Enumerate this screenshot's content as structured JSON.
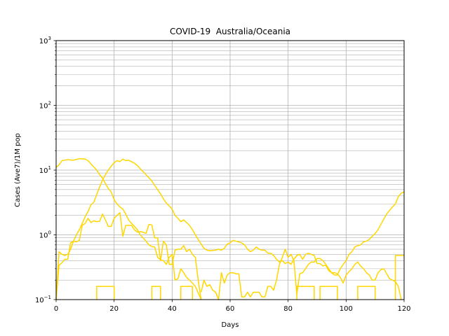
{
  "chart_data": {
    "type": "line",
    "title": "COVID-19  Australia/Oceania",
    "xlabel": "Days",
    "ylabel": "Cases (Ave7)/1M pop",
    "xlim": [
      0,
      120
    ],
    "ylim": [
      0.1,
      1000
    ],
    "yscale": "log",
    "grid": true,
    "line_color": "#FFD700",
    "x_ticks": [
      "0",
      "20",
      "40",
      "60",
      "80",
      "100",
      "120"
    ],
    "y_tick_values": [
      0.1,
      1,
      10,
      100,
      1000
    ],
    "y_ticks": [
      {
        "base": "10",
        "exp": "−1"
      },
      {
        "base": "10",
        "exp": "0"
      },
      {
        "base": "10",
        "exp": "1"
      },
      {
        "base": "10",
        "exp": "2"
      },
      {
        "base": "10",
        "exp": "3"
      }
    ],
    "series": [
      {
        "points": [
          [
            0,
            11.0
          ],
          [
            1,
            12.0
          ],
          [
            2,
            14.0
          ],
          [
            4,
            14.5
          ],
          [
            6,
            14.2
          ],
          [
            8,
            15.0
          ],
          [
            10,
            14.8
          ],
          [
            11,
            14.0
          ],
          [
            12,
            12.5
          ],
          [
            14,
            10.0
          ],
          [
            15,
            8.5
          ],
          [
            16,
            7.5
          ],
          [
            17,
            6.2
          ],
          [
            18,
            5.2
          ],
          [
            19,
            4.6
          ],
          [
            20,
            3.5
          ],
          [
            21,
            3.0
          ],
          [
            22,
            2.7
          ],
          [
            23,
            2.5
          ],
          [
            24,
            2.1
          ],
          [
            25,
            1.7
          ],
          [
            26,
            1.5
          ],
          [
            27,
            1.35
          ],
          [
            28,
            1.2
          ],
          [
            29,
            1.0
          ],
          [
            30,
            0.9
          ],
          [
            31,
            0.8
          ],
          [
            32,
            0.7
          ],
          [
            33,
            0.66
          ],
          [
            34,
            0.65
          ],
          [
            35,
            0.45
          ],
          [
            36,
            0.41
          ],
          [
            37,
            0.4
          ],
          [
            38,
            0.35
          ],
          [
            39,
            0.45
          ],
          [
            40,
            0.5
          ],
          [
            41,
            0.2
          ],
          [
            42,
            0.21
          ],
          [
            43,
            0.3
          ],
          [
            44,
            0.26
          ],
          [
            45,
            0.22
          ],
          [
            46,
            0.2
          ],
          [
            47,
            0.18
          ],
          [
            48,
            0.16
          ],
          [
            50,
            0.1
          ]
        ]
      },
      {
        "points": [
          [
            0,
            0.1
          ],
          [
            1,
            0.34
          ],
          [
            2,
            0.37
          ],
          [
            3,
            0.42
          ],
          [
            4,
            0.42
          ],
          [
            5,
            0.75
          ],
          [
            6,
            0.8
          ],
          [
            7,
            0.78
          ],
          [
            8,
            0.82
          ],
          [
            9,
            1.4
          ],
          [
            10,
            1.5
          ],
          [
            11,
            1.8
          ],
          [
            12,
            1.55
          ],
          [
            13,
            1.65
          ],
          [
            14,
            1.6
          ],
          [
            15,
            1.62
          ],
          [
            16,
            2.1
          ],
          [
            17,
            1.7
          ],
          [
            18,
            1.35
          ],
          [
            19,
            1.35
          ],
          [
            20,
            1.8
          ],
          [
            21,
            2.0
          ],
          [
            22,
            2.2
          ],
          [
            23,
            0.95
          ],
          [
            24,
            1.4
          ],
          [
            25,
            1.4
          ],
          [
            26,
            1.4
          ],
          [
            27,
            1.2
          ],
          [
            28,
            1.1
          ],
          [
            29,
            1.12
          ],
          [
            30,
            1.1
          ],
          [
            31,
            1.05
          ],
          [
            32,
            1.45
          ],
          [
            33,
            1.42
          ],
          [
            34,
            0.9
          ],
          [
            35,
            0.9
          ],
          [
            36,
            0.4
          ],
          [
            37,
            0.8
          ],
          [
            38,
            0.7
          ],
          [
            39,
            0.35
          ],
          [
            40,
            0.35
          ],
          [
            41,
            0.58
          ],
          [
            42,
            0.6
          ],
          [
            43,
            0.6
          ],
          [
            44,
            0.68
          ],
          [
            45,
            0.55
          ],
          [
            46,
            0.6
          ],
          [
            47,
            0.5
          ],
          [
            48,
            0.45
          ],
          [
            49,
            0.2
          ],
          [
            50,
            0.1
          ]
        ]
      },
      {
        "points": [
          [
            0,
            0.1
          ],
          [
            1,
            0.55
          ],
          [
            2,
            0.5
          ],
          [
            3,
            0.48
          ],
          [
            4,
            0.5
          ],
          [
            5,
            0.6
          ],
          [
            6,
            0.8
          ],
          [
            7,
            1.0
          ],
          [
            8,
            1.2
          ],
          [
            9,
            1.5
          ],
          [
            10,
            1.9
          ],
          [
            11,
            2.3
          ],
          [
            12,
            2.9
          ],
          [
            13,
            3.2
          ],
          [
            14,
            4.2
          ],
          [
            15,
            5.5
          ],
          [
            16,
            7.0
          ],
          [
            17,
            8.5
          ],
          [
            18,
            10.0
          ],
          [
            19,
            11.5
          ],
          [
            20,
            13.0
          ],
          [
            21,
            14.0
          ],
          [
            22,
            13.5
          ],
          [
            23,
            14.8
          ],
          [
            24,
            14.0
          ],
          [
            25,
            14.2
          ],
          [
            26,
            13.5
          ],
          [
            27,
            12.8
          ],
          [
            28,
            11.8
          ],
          [
            29,
            10.5
          ],
          [
            30,
            9.5
          ],
          [
            31,
            8.5
          ],
          [
            32,
            7.6
          ],
          [
            33,
            6.8
          ],
          [
            34,
            5.8
          ],
          [
            35,
            5.0
          ],
          [
            36,
            4.3
          ],
          [
            37,
            3.6
          ],
          [
            38,
            3.1
          ],
          [
            39,
            2.8
          ],
          [
            40,
            2.5
          ],
          [
            41,
            2.0
          ],
          [
            42,
            1.8
          ],
          [
            43,
            1.6
          ],
          [
            44,
            1.7
          ],
          [
            45,
            1.55
          ],
          [
            46,
            1.4
          ],
          [
            47,
            1.2
          ],
          [
            48,
            1.0
          ],
          [
            49,
            0.85
          ],
          [
            50,
            0.72
          ],
          [
            51,
            0.62
          ],
          [
            52,
            0.58
          ],
          [
            53,
            0.57
          ],
          [
            55,
            0.58
          ],
          [
            56,
            0.6
          ],
          [
            57,
            0.58
          ],
          [
            58,
            0.62
          ],
          [
            59,
            0.72
          ],
          [
            60,
            0.75
          ],
          [
            61,
            0.82
          ],
          [
            62,
            0.8
          ],
          [
            63,
            0.78
          ],
          [
            64,
            0.75
          ],
          [
            65,
            0.7
          ],
          [
            66,
            0.6
          ],
          [
            67,
            0.55
          ],
          [
            68,
            0.58
          ],
          [
            69,
            0.65
          ],
          [
            70,
            0.6
          ],
          [
            71,
            0.58
          ],
          [
            72,
            0.58
          ],
          [
            73,
            0.52
          ],
          [
            74,
            0.52
          ],
          [
            75,
            0.48
          ],
          [
            76,
            0.42
          ],
          [
            77,
            0.38
          ],
          [
            78,
            0.4
          ],
          [
            79,
            0.36
          ],
          [
            80,
            0.38
          ],
          [
            81,
            0.35
          ],
          [
            82,
            0.42
          ],
          [
            83,
            0.48
          ],
          [
            84,
            0.5
          ],
          [
            85,
            0.42
          ],
          [
            86,
            0.5
          ],
          [
            87,
            0.52
          ],
          [
            88,
            0.5
          ],
          [
            89,
            0.48
          ],
          [
            90,
            0.36
          ],
          [
            91,
            0.36
          ],
          [
            92,
            0.33
          ],
          [
            93,
            0.34
          ],
          [
            94,
            0.28
          ],
          [
            95,
            0.26
          ],
          [
            96,
            0.24
          ],
          [
            97,
            0.24
          ],
          [
            98,
            0.3
          ],
          [
            99,
            0.35
          ],
          [
            100,
            0.4
          ],
          [
            101,
            0.5
          ],
          [
            102,
            0.55
          ],
          [
            103,
            0.65
          ],
          [
            104,
            0.68
          ],
          [
            105,
            0.7
          ],
          [
            106,
            0.78
          ],
          [
            107,
            0.8
          ],
          [
            108,
            0.85
          ],
          [
            109,
            0.95
          ],
          [
            110,
            1.05
          ],
          [
            111,
            1.2
          ],
          [
            112,
            1.45
          ],
          [
            113,
            1.75
          ],
          [
            114,
            2.1
          ],
          [
            115,
            2.4
          ],
          [
            116,
            2.7
          ],
          [
            117,
            3.0
          ],
          [
            118,
            3.9
          ],
          [
            119,
            4.4
          ],
          [
            120,
            4.6
          ]
        ]
      },
      {
        "points": [
          [
            50,
            0.13
          ],
          [
            51,
            0.2
          ],
          [
            52,
            0.16
          ],
          [
            53,
            0.17
          ],
          [
            54,
            0.14
          ],
          [
            55,
            0.13
          ],
          [
            56,
            0.1
          ],
          [
            57,
            0.26
          ],
          [
            58,
            0.18
          ],
          [
            59,
            0.24
          ],
          [
            60,
            0.26
          ],
          [
            61,
            0.26
          ],
          [
            62,
            0.25
          ],
          [
            63,
            0.25
          ],
          [
            64,
            0.11
          ],
          [
            65,
            0.11
          ],
          [
            66,
            0.13
          ],
          [
            67,
            0.11
          ],
          [
            68,
            0.13
          ],
          [
            69,
            0.13
          ],
          [
            70,
            0.13
          ],
          [
            71,
            0.11
          ],
          [
            72,
            0.11
          ],
          [
            73,
            0.16
          ],
          [
            74,
            0.16
          ],
          [
            75,
            0.14
          ],
          [
            76,
            0.2
          ],
          [
            77,
            0.35
          ],
          [
            78,
            0.45
          ],
          [
            79,
            0.6
          ],
          [
            80,
            0.45
          ],
          [
            81,
            0.5
          ],
          [
            82,
            0.4
          ],
          [
            83,
            0.12
          ],
          [
            84,
            0.25
          ],
          [
            85,
            0.26
          ],
          [
            86,
            0.3
          ],
          [
            87,
            0.35
          ],
          [
            88,
            0.38
          ],
          [
            89,
            0.38
          ],
          [
            90,
            0.43
          ],
          [
            91,
            0.43
          ],
          [
            92,
            0.4
          ],
          [
            93,
            0.35
          ],
          [
            94,
            0.3
          ],
          [
            95,
            0.26
          ],
          [
            96,
            0.26
          ],
          [
            97,
            0.25
          ],
          [
            98,
            0.22
          ],
          [
            99,
            0.18
          ],
          [
            100,
            0.24
          ],
          [
            101,
            0.27
          ],
          [
            102,
            0.3
          ],
          [
            103,
            0.35
          ],
          [
            104,
            0.38
          ],
          [
            105,
            0.33
          ],
          [
            106,
            0.3
          ],
          [
            107,
            0.26
          ],
          [
            108,
            0.24
          ],
          [
            109,
            0.2
          ],
          [
            110,
            0.2
          ],
          [
            111,
            0.26
          ],
          [
            112,
            0.29
          ],
          [
            113,
            0.3
          ],
          [
            114,
            0.25
          ],
          [
            115,
            0.21
          ],
          [
            116,
            0.2
          ],
          [
            117,
            0.19
          ],
          [
            118,
            0.16
          ],
          [
            119,
            0.1
          ]
        ]
      },
      {
        "points": [
          [
            14,
            0.1
          ],
          [
            14,
            0.16
          ],
          [
            20,
            0.16
          ],
          [
            20,
            0.1
          ]
        ]
      },
      {
        "points": [
          [
            33,
            0.1
          ],
          [
            33,
            0.16
          ],
          [
            36,
            0.16
          ],
          [
            36,
            0.1
          ]
        ]
      },
      {
        "points": [
          [
            43,
            0.1
          ],
          [
            43,
            0.16
          ],
          [
            47,
            0.16
          ],
          [
            47,
            0.1
          ]
        ]
      },
      {
        "points": [
          [
            83,
            0.1
          ],
          [
            83,
            0.16
          ],
          [
            89,
            0.16
          ],
          [
            89,
            0.1
          ]
        ]
      },
      {
        "points": [
          [
            91,
            0.1
          ],
          [
            91,
            0.16
          ],
          [
            97,
            0.16
          ],
          [
            97,
            0.1
          ]
        ]
      },
      {
        "points": [
          [
            104,
            0.1
          ],
          [
            104,
            0.16
          ],
          [
            110,
            0.16
          ],
          [
            110,
            0.1
          ]
        ]
      },
      {
        "points": [
          [
            117,
            0.1
          ],
          [
            117,
            0.48
          ],
          [
            120,
            0.48
          ]
        ]
      }
    ]
  }
}
